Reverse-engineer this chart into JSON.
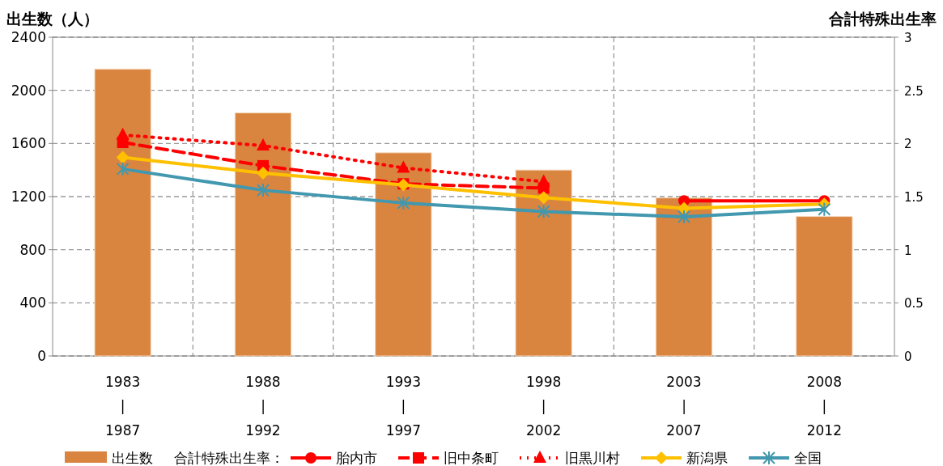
{
  "chart_data": {
    "type": "bar",
    "ylabel": "出生数（人）",
    "y2label": "合計特殊出生率",
    "legend_title": "合計特殊出生率：",
    "categories": [
      "1983\n|\n1987",
      "1988\n|\n1992",
      "1993\n|\n1997",
      "1998\n|\n2002",
      "2003\n|\n2007",
      "2008\n|\n2012"
    ],
    "series": [
      {
        "name": "出生数",
        "color": "#d9843f",
        "values": [
          2160,
          1830,
          1530,
          1400,
          1190,
          1050
        ]
      },
      {
        "name": "胎内市",
        "type": "line",
        "axis": "y2",
        "color": "#ff0000",
        "marker": "circle",
        "line_style": "solid",
        "values": [
          null,
          null,
          null,
          null,
          1.46,
          1.46
        ]
      },
      {
        "name": "旧中条町",
        "type": "line",
        "axis": "y2",
        "color": "#ff0000",
        "marker": "square",
        "line_style": "dashed",
        "values": [
          2.01,
          1.79,
          1.62,
          1.58,
          null,
          null
        ]
      },
      {
        "name": "旧黒川村",
        "type": "line",
        "axis": "y2",
        "color": "#ff0000",
        "marker": "triangle",
        "line_style": "dotted",
        "values": [
          2.08,
          1.98,
          1.77,
          1.64,
          null,
          null
        ]
      },
      {
        "name": "新潟県",
        "type": "line",
        "axis": "y2",
        "color": "#ffc000",
        "marker": "diamond",
        "line_style": "solid",
        "values": [
          1.87,
          1.72,
          1.61,
          1.49,
          1.39,
          1.43
        ]
      },
      {
        "name": "全国",
        "type": "line",
        "axis": "y2",
        "color": "#4198af",
        "marker": "cross",
        "line_style": "solid",
        "values": [
          1.76,
          1.56,
          1.44,
          1.36,
          1.31,
          1.38
        ]
      }
    ],
    "ylim": [
      0,
      2400
    ],
    "yticks": [
      0,
      400,
      800,
      1200,
      1600,
      2000,
      2400
    ],
    "y2lim": [
      0,
      3
    ],
    "y2ticks": [
      0,
      0.5,
      1,
      1.5,
      2,
      2.5,
      3
    ],
    "grid": true,
    "legend": "bottom"
  }
}
